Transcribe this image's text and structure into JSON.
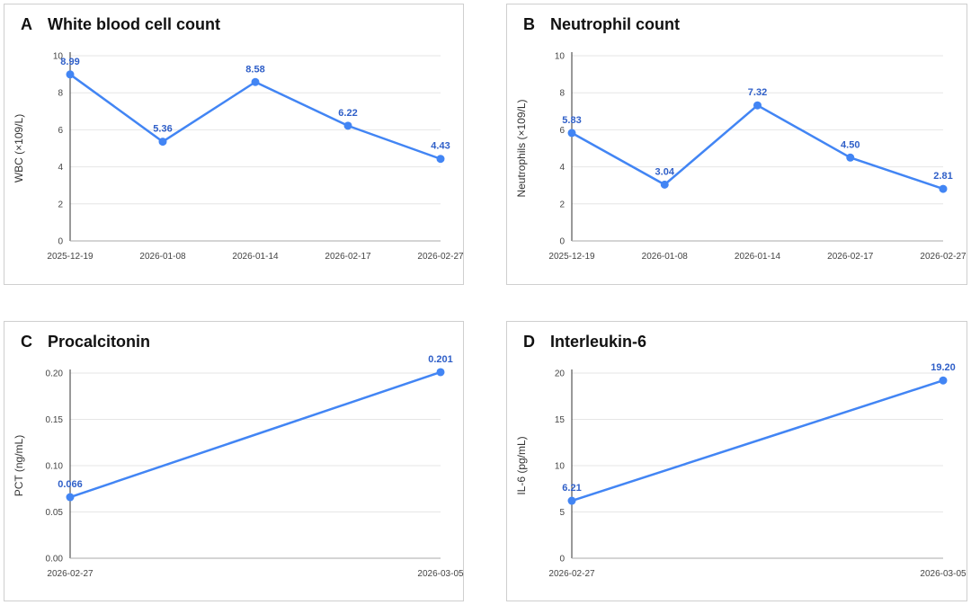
{
  "chart_data": [
    {
      "type": "line",
      "letter": "A",
      "title": "White blood cell count",
      "ylabel": "WBC (×109/L)",
      "x": [
        "2025-12-19",
        "2026-01-08",
        "2026-01-14",
        "2026-02-17",
        "2026-02-27"
      ],
      "values": [
        8.99,
        5.36,
        8.58,
        6.22,
        4.43
      ],
      "labels": [
        "8.99",
        "5.36",
        "8.58",
        "6.22",
        "4.43"
      ],
      "ylim": [
        0,
        10
      ],
      "yticks": [
        "0",
        "2",
        "4",
        "6",
        "8",
        "10"
      ],
      "grid": true,
      "color": "#4285f4"
    },
    {
      "type": "line",
      "letter": "B",
      "title": "Neutrophil count",
      "ylabel": "Neutrophils (×109/L)",
      "x": [
        "2025-12-19",
        "2026-01-08",
        "2026-01-14",
        "2026-02-17",
        "2026-02-27"
      ],
      "values": [
        5.83,
        3.04,
        7.32,
        4.5,
        2.81
      ],
      "labels": [
        "5.83",
        "3.04",
        "7.32",
        "4.50",
        "2.81"
      ],
      "ylim": [
        0,
        10
      ],
      "yticks": [
        "0",
        "2",
        "4",
        "6",
        "8",
        "10"
      ],
      "grid": true,
      "color": "#4285f4"
    },
    {
      "type": "line",
      "letter": "C",
      "title": "Procalcitonin",
      "ylabel": "PCT (ng/mL)",
      "x": [
        "2026-02-27",
        "2026-03-05"
      ],
      "values": [
        0.066,
        0.201
      ],
      "labels": [
        "0.066",
        "0.201"
      ],
      "ylim": [
        0,
        0.2
      ],
      "yticks": [
        "0.00",
        "0.05",
        "0.10",
        "0.15",
        "0.20"
      ],
      "grid": true,
      "color": "#4285f4"
    },
    {
      "type": "line",
      "letter": "D",
      "title": "Interleukin-6",
      "ylabel": "IL-6 (pg/mL)",
      "x": [
        "2026-02-27",
        "2026-03-05"
      ],
      "values": [
        6.21,
        19.2
      ],
      "labels": [
        "6.21",
        "19.20"
      ],
      "ylim": [
        0,
        20
      ],
      "yticks": [
        "0",
        "5",
        "10",
        "15",
        "20"
      ],
      "grid": true,
      "color": "#4285f4"
    }
  ]
}
